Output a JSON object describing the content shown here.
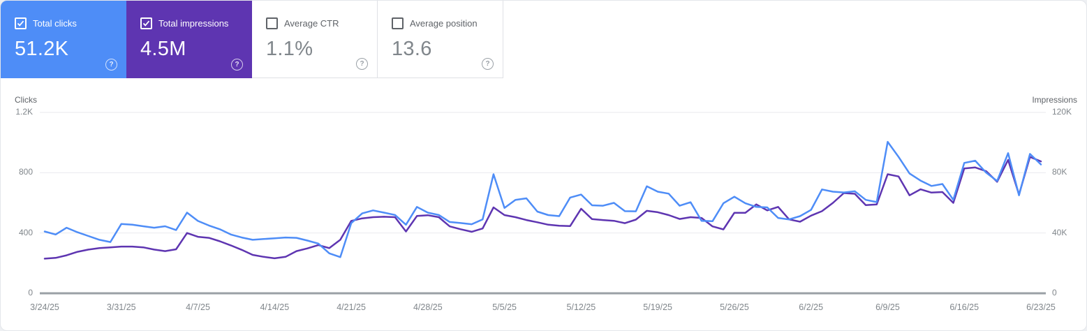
{
  "cards": [
    {
      "label": "Total clicks",
      "value": "51.2K",
      "checked": true,
      "color": "#4e8df7"
    },
    {
      "label": "Total impressions",
      "value": "4.5M",
      "checked": true,
      "color": "#5e35b1"
    },
    {
      "label": "Average CTR",
      "value": "1.1%",
      "checked": false,
      "color": "#ffffff"
    },
    {
      "label": "Average position",
      "value": "13.6",
      "checked": false,
      "color": "#ffffff"
    }
  ],
  "help_icon_glyph": "?",
  "chart_data": {
    "type": "line",
    "granularity": "daily",
    "date_start": "3/24/25",
    "date_end": "6/23/25",
    "x_tick_labels": [
      "3/24/25",
      "3/31/25",
      "4/7/25",
      "4/14/25",
      "4/21/25",
      "4/28/25",
      "5/5/25",
      "5/12/25",
      "5/19/25",
      "5/26/25",
      "6/2/25",
      "6/9/25",
      "6/16/25",
      "6/23/25"
    ],
    "left_axis": {
      "title": "Clicks",
      "tick_labels": [
        "1.2K",
        "800",
        "400",
        "0"
      ],
      "tick_values": [
        1200,
        800,
        400,
        0
      ],
      "max": 1200
    },
    "right_axis": {
      "title": "Impressions",
      "tick_labels": [
        "120K",
        "80K",
        "40K",
        "0"
      ],
      "tick_values": [
        120000,
        80000,
        40000,
        0
      ],
      "max": 120000
    },
    "grid": "horizontal",
    "legend_position": "none",
    "series": [
      {
        "name": "Clicks",
        "axis": "left",
        "color": "#4e8df7",
        "values": [
          410,
          390,
          435,
          405,
          380,
          355,
          340,
          460,
          455,
          445,
          435,
          445,
          420,
          535,
          480,
          450,
          425,
          390,
          370,
          355,
          360,
          365,
          370,
          368,
          350,
          330,
          265,
          240,
          465,
          530,
          550,
          535,
          520,
          455,
          573,
          535,
          520,
          473,
          466,
          458,
          490,
          790,
          566,
          620,
          630,
          542,
          519,
          512,
          635,
          655,
          584,
          581,
          600,
          545,
          544,
          710,
          674,
          661,
          581,
          604,
          481,
          478,
          597,
          641,
          597,
          573,
          570,
          500,
          490,
          512,
          553,
          689,
          674,
          669,
          677,
          620,
          605,
          1005,
          905,
          795,
          748,
          712,
          725,
          620,
          865,
          880,
          800,
          745,
          930,
          650,
          925,
          855
        ]
      },
      {
        "name": "Impressions",
        "axis": "right",
        "color": "#5e35b1",
        "values": [
          23000,
          23500,
          25200,
          27500,
          29000,
          30000,
          30500,
          31000,
          31000,
          30500,
          29000,
          28000,
          29200,
          40000,
          37500,
          36800,
          34500,
          31800,
          28800,
          25500,
          24200,
          23200,
          24200,
          28000,
          29800,
          32000,
          30000,
          35500,
          48000,
          49700,
          50500,
          50800,
          50500,
          41000,
          51300,
          51800,
          50500,
          44400,
          42500,
          40800,
          43000,
          57000,
          51900,
          50500,
          48600,
          47100,
          45500,
          44800,
          44600,
          56100,
          49200,
          48600,
          48100,
          46500,
          48900,
          54700,
          53800,
          51900,
          49300,
          50500,
          50000,
          44400,
          42400,
          53400,
          53400,
          59000,
          55000,
          57300,
          49000,
          47500,
          51500,
          54500,
          60000,
          66500,
          66000,
          58500,
          59000,
          79000,
          77500,
          65000,
          69000,
          66800,
          67200,
          60000,
          82800,
          83500,
          81000,
          74000,
          88500,
          65500,
          90500,
          87500
        ]
      }
    ]
  }
}
